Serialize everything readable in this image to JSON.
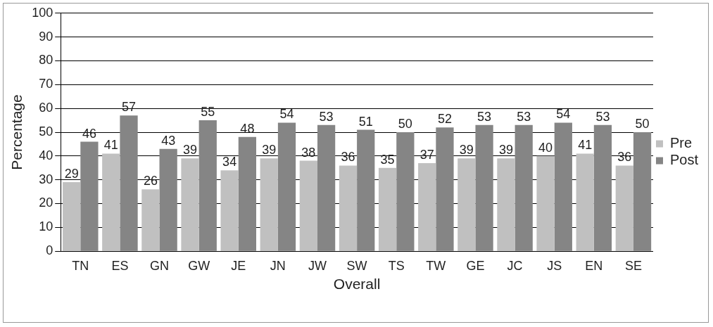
{
  "chart_data": {
    "type": "bar",
    "xlabel": "Overall",
    "ylabel": "Percentage",
    "categories": [
      "TN",
      "ES",
      "GN",
      "GW",
      "JE",
      "JN",
      "JW",
      "SW",
      "TS",
      "TW",
      "GE",
      "JC",
      "JS",
      "EN",
      "SE"
    ],
    "series": [
      {
        "name": "Pre",
        "color": "#c0c0c0",
        "values": [
          29,
          41,
          26,
          39,
          34,
          39,
          38,
          36,
          35,
          37,
          39,
          39,
          40,
          41,
          36
        ]
      },
      {
        "name": "Post",
        "color": "#858585",
        "values": [
          46,
          57,
          43,
          55,
          48,
          54,
          53,
          51,
          50,
          52,
          53,
          53,
          54,
          53,
          50
        ]
      }
    ],
    "ylim": [
      0,
      100
    ],
    "yticks": [
      0,
      10,
      20,
      30,
      40,
      50,
      60,
      70,
      80,
      90,
      100
    ],
    "grid": "y",
    "legend": "right",
    "data_labels": true
  }
}
